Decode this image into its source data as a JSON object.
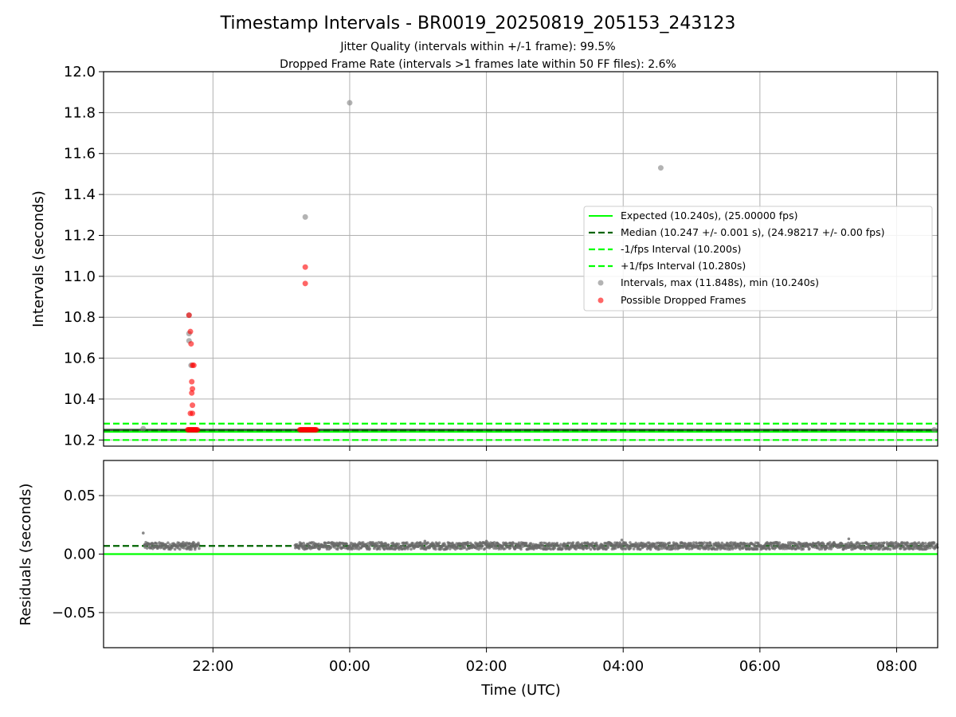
{
  "chart_data": [
    {
      "type": "scatter",
      "title": "Timestamp Intervals - BR0019_20250819_205153_243123",
      "subtitle_lines": [
        "Jitter Quality (intervals within +/-1 frame): 99.5%",
        "Dropped Frame Rate (intervals >1 frames late within 50 FF files): 2.6%"
      ],
      "xlabel": "",
      "ylabel": "Intervals (seconds)",
      "xlim_hours": [
        20.4,
        32.6
      ],
      "ylim": [
        10.17,
        12.0
      ],
      "yticks": [
        "10.2",
        "10.4",
        "10.6",
        "10.8",
        "11.0",
        "11.2",
        "11.4",
        "11.6",
        "11.8",
        "12.0"
      ],
      "ytick_values": [
        10.2,
        10.4,
        10.6,
        10.8,
        11.0,
        11.2,
        11.4,
        11.6,
        11.8,
        12.0
      ],
      "grid": true,
      "legend_position": "center-right",
      "series": [
        {
          "name": "Expected (10.240s), (25.00000 fps)",
          "kind": "hline",
          "y": 10.24,
          "color": "#00ff00",
          "style": "solid"
        },
        {
          "name": "Median (10.247 +/- 0.001 s), (24.98217 +/- 0.00 fps)",
          "kind": "hline",
          "y": 10.247,
          "color": "#006400",
          "style": "dashed"
        },
        {
          "name": "-1/fps Interval (10.200s)",
          "kind": "hline",
          "y": 10.2,
          "color": "#00ff00",
          "style": "dashed"
        },
        {
          "name": "+1/fps Interval (10.280s)",
          "kind": "hline",
          "y": 10.28,
          "color": "#00ff00",
          "style": "dashed"
        },
        {
          "name": "Intervals, max (11.848s), min (10.240s)",
          "kind": "scatter",
          "color": "#808080",
          "points": [
            [
              20.98,
              10.255
            ],
            [
              21.65,
              10.72
            ],
            [
              21.65,
              10.685
            ],
            [
              21.65,
              10.81
            ],
            [
              21.68,
              10.565
            ],
            [
              23.35,
              11.29
            ],
            [
              24.0,
              11.848
            ],
            [
              28.55,
              11.53
            ],
            [
              32.55,
              10.25
            ]
          ]
        },
        {
          "name": "Possible Dropped Frames",
          "kind": "scatter",
          "color": "#ff0000",
          "points": [
            [
              21.65,
              10.81
            ],
            [
              21.67,
              10.73
            ],
            [
              21.68,
              10.67
            ],
            [
              21.7,
              10.565
            ],
            [
              21.72,
              10.565
            ],
            [
              21.69,
              10.485
            ],
            [
              21.7,
              10.45
            ],
            [
              21.69,
              10.43
            ],
            [
              21.7,
              10.37
            ],
            [
              21.67,
              10.33
            ],
            [
              21.7,
              10.33
            ],
            [
              23.35,
              11.045
            ],
            [
              23.35,
              10.965
            ]
          ]
        },
        {
          "name": "",
          "kind": "scatter_cluster",
          "color": "#ff0000",
          "x_range": [
            21.63,
            21.78
          ],
          "y": 10.25
        },
        {
          "name": "",
          "kind": "scatter_cluster",
          "color": "#ff0000",
          "x_range": [
            23.27,
            23.52
          ],
          "y": 10.25
        }
      ],
      "interval_band": {
        "x_range": [
          20.4,
          32.6
        ],
        "y": 10.247
      }
    },
    {
      "type": "scatter",
      "title": "",
      "xlabel": "Time (UTC)",
      "ylabel": "Residuals (seconds)",
      "xlim_hours": [
        20.4,
        32.6
      ],
      "xticks": [
        "22:00",
        "00:00",
        "02:00",
        "04:00",
        "06:00",
        "08:00"
      ],
      "xtick_values": [
        22,
        24,
        26,
        28,
        30,
        32
      ],
      "ylim": [
        -0.08,
        0.08
      ],
      "yticks": [
        "−0.05",
        "0.00",
        "0.05"
      ],
      "ytick_values": [
        -0.05,
        0.0,
        0.05
      ],
      "grid": true,
      "expected_line": {
        "y": 0.0,
        "color": "#00ff00"
      },
      "median_line": {
        "y": 0.007,
        "color": "#006400"
      },
      "residual_points": [
        [
          20.98,
          0.018
        ],
        [
          21.0,
          0.008
        ],
        [
          21.65,
          0.009
        ],
        [
          21.66,
          0.004
        ],
        [
          21.7,
          0.007
        ],
        [
          27.98,
          0.012
        ],
        [
          26.0,
          0.011
        ],
        [
          31.3,
          0.013
        ],
        [
          28.4,
          0.004
        ],
        [
          25.1,
          0.011
        ]
      ],
      "residual_band": {
        "segments": [
          [
            21.0,
            21.8
          ],
          [
            23.2,
            32.6
          ]
        ],
        "y": 0.007,
        "spread": 0.003,
        "color": "#696969"
      }
    }
  ],
  "colors": {
    "expected": "#00ff00",
    "median": "#006400",
    "intervals": "#808080",
    "dropped": "#ff0000"
  }
}
